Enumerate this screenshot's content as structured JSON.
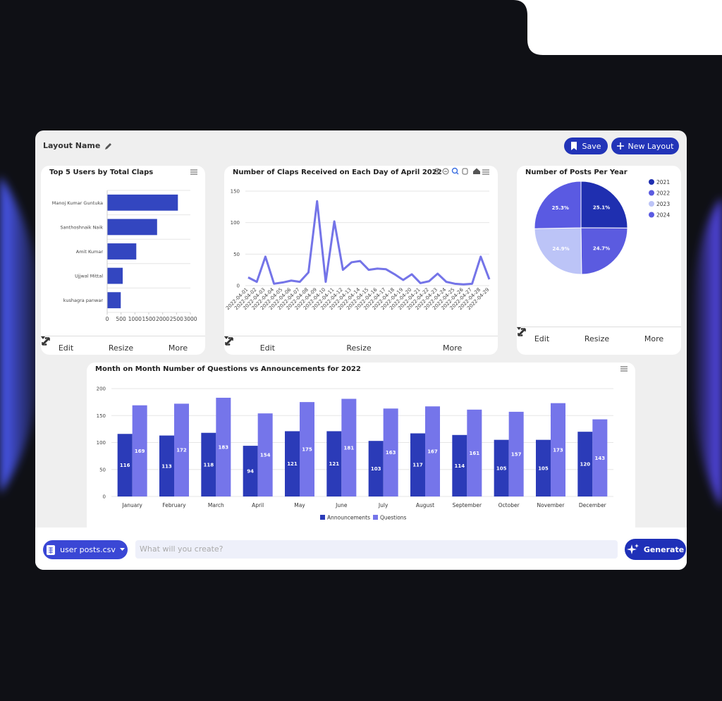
{
  "layout_name": "Layout Name",
  "buttons": {
    "save": "Save",
    "new_layout": "New Layout"
  },
  "card_actions": {
    "edit": "Edit",
    "resize": "Resize",
    "more": "More"
  },
  "chart_data": [
    {
      "type": "hbar",
      "title": "Top 5 Users by Total Claps",
      "categories": [
        "Manoj Kumar Guntuka",
        "Santhoshnaik Naik",
        "Amit Kumar",
        "Ujjwal Mittal",
        "kushagra panwar"
      ],
      "values": [
        2550,
        1800,
        1050,
        560,
        490
      ],
      "color": "#3346c0",
      "xlim": [
        0,
        3000
      ],
      "xticks": [
        0,
        500,
        1000,
        1500,
        2000,
        2500,
        3000
      ]
    },
    {
      "type": "line",
      "title": "Number of Claps Received on Each Day of April 2022",
      "categories": [
        "2022-04-01",
        "2022-04-02",
        "2022-04-03",
        "2022-04-04",
        "2022-04-05",
        "2022-04-06",
        "2022-04-07",
        "2022-04-08",
        "2022-04-09",
        "2022-04-10",
        "2022-04-11",
        "2022-04-12",
        "2022-04-13",
        "2022-04-14",
        "2022-04-15",
        "2022-04-16",
        "2022-04-17",
        "2022-04-18",
        "2022-04-19",
        "2022-04-20",
        "2022-04-21",
        "2022-04-22",
        "2022-04-23",
        "2022-04-24",
        "2022-04-25",
        "2022-04-26",
        "2022-04-27",
        "2022-04-28",
        "2022-04-29"
      ],
      "values": [
        13,
        6,
        46,
        3,
        5,
        8,
        6,
        21,
        134,
        6,
        102,
        25,
        37,
        39,
        25,
        27,
        26,
        18,
        9,
        18,
        4,
        7,
        19,
        6,
        3,
        2,
        3,
        46,
        10
      ],
      "color": "#7474e8",
      "ylim": [
        0,
        150
      ],
      "yticks": [
        0,
        50,
        100,
        150
      ],
      "grid": true
    },
    {
      "type": "pie",
      "title": "Number of Posts Per Year",
      "categories": [
        "2021",
        "2022",
        "2023",
        "2024"
      ],
      "values": [
        25.1,
        24.7,
        24.9,
        25.3
      ],
      "value_labels": [
        "25.1%",
        "24.7%",
        "24.9%",
        "25.3%"
      ],
      "colors": [
        "#1f2fb0",
        "#5b5be0",
        "#bcc4f7",
        "#5a5ae2"
      ]
    },
    {
      "type": "bar",
      "title": "Month on Month Number of Questions vs Announcements for 2022",
      "categories": [
        "January",
        "February",
        "March",
        "April",
        "May",
        "June",
        "July",
        "August",
        "September",
        "October",
        "November",
        "December"
      ],
      "series": [
        {
          "name": "Announcements",
          "color": "#2b3bb8",
          "values": [
            116,
            113,
            118,
            94,
            121,
            121,
            103,
            117,
            114,
            105,
            105,
            120
          ]
        },
        {
          "name": "Questions",
          "color": "#7575ea",
          "values": [
            169,
            172,
            183,
            154,
            175,
            181,
            163,
            167,
            161,
            157,
            173,
            143
          ]
        }
      ],
      "ylim": [
        0,
        200
      ],
      "yticks": [
        0,
        50,
        100,
        150,
        200
      ],
      "grid": true
    }
  ],
  "footer": {
    "file": "user posts.csv",
    "placeholder": "What will you create?",
    "generate": "Generate"
  }
}
